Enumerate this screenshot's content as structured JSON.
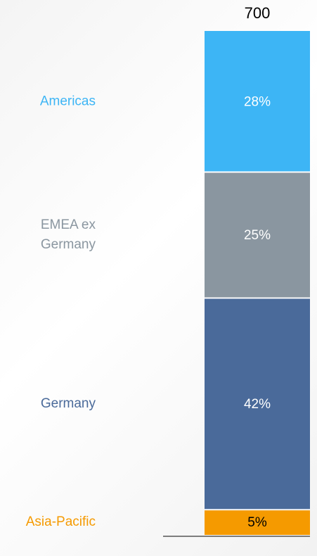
{
  "chart_data": {
    "type": "stacked_bar",
    "total": 700,
    "ylim": [
      0,
      100
    ],
    "series": [
      {
        "name": "Asia-Pacific",
        "color": "#f59a00",
        "label_color": "#000000",
        "values": [
          5
        ],
        "value_labels": [
          "5%"
        ]
      },
      {
        "name": "Germany",
        "color": "#4a6a9a",
        "label_color": "#ffffff",
        "values": [
          42
        ],
        "value_labels": [
          "42%"
        ]
      },
      {
        "name": "EMEA ex Germany",
        "color": "#8a96a0",
        "label_color": "#ffffff",
        "values": [
          25
        ],
        "value_labels": [
          "25%"
        ]
      },
      {
        "name": "Americas",
        "color": "#3db5f5",
        "label_color": "#ffffff",
        "values": [
          28
        ],
        "value_labels": [
          "28%"
        ]
      }
    ]
  }
}
